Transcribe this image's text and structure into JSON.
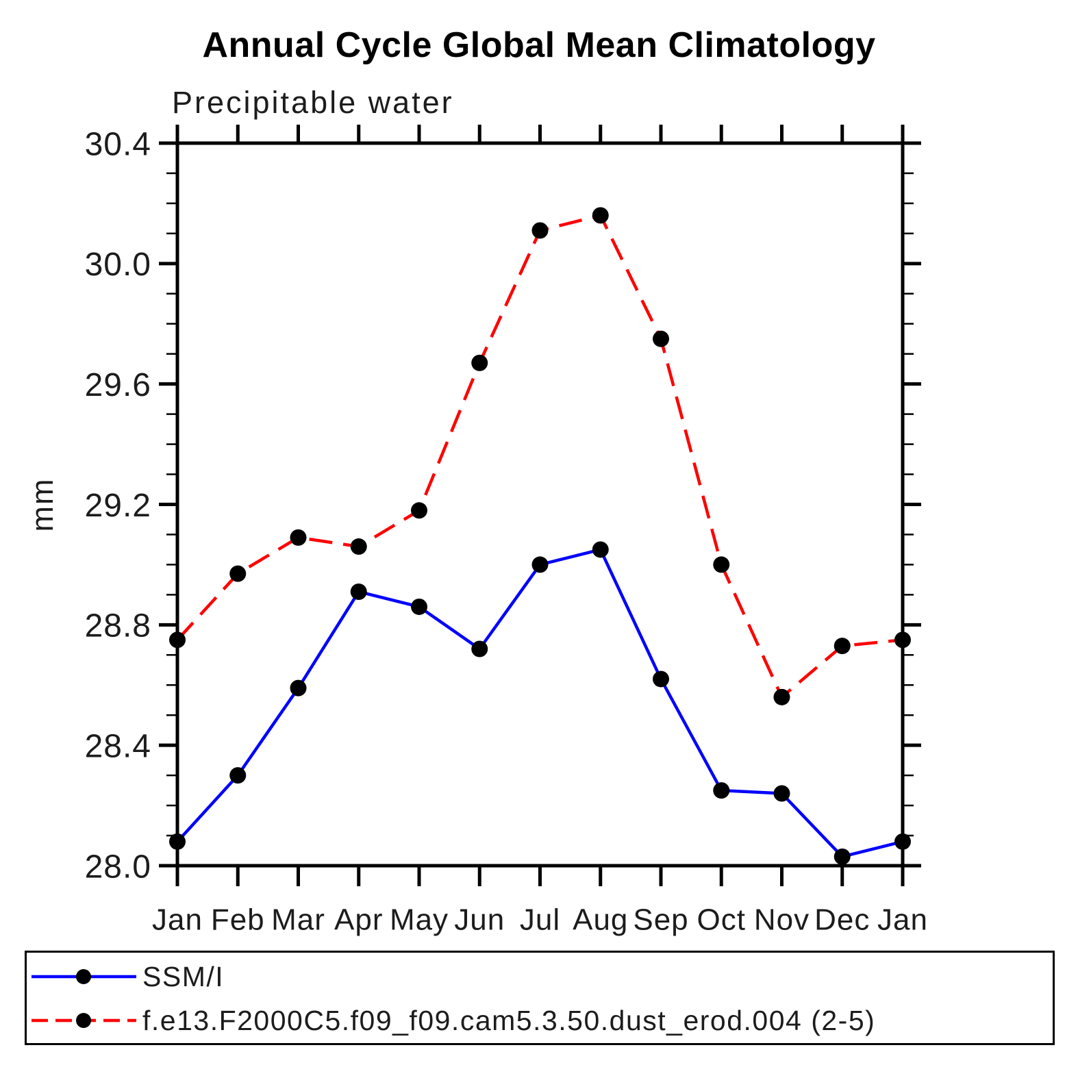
{
  "title": "Annual Cycle Global Mean Climatology",
  "subtitle": "Precipitable water",
  "ylabel": "mm",
  "colors": {
    "axis": "#000000",
    "marker": "#000000",
    "obs_line": "#0000ff",
    "model_line": "#ff0000",
    "background": "#ffffff"
  },
  "chart_data": {
    "type": "line",
    "categories": [
      "Jan",
      "Feb",
      "Mar",
      "Apr",
      "May",
      "Jun",
      "Jul",
      "Aug",
      "Sep",
      "Oct",
      "Nov",
      "Dec",
      "Jan"
    ],
    "series": [
      {
        "name": "SSM/I",
        "style": "solid",
        "color": "#0000ff",
        "marker": "filled-circle",
        "values": [
          28.08,
          28.3,
          28.59,
          28.91,
          28.86,
          28.72,
          29.0,
          29.05,
          28.62,
          28.25,
          28.24,
          28.03,
          28.08
        ]
      },
      {
        "name": "f.e13.F2000C5.f09_f09.cam5.3.50.dust_erod.004 (2-5)",
        "style": "dashed",
        "color": "#ff0000",
        "marker": "filled-circle",
        "values": [
          28.75,
          28.97,
          29.09,
          29.06,
          29.18,
          29.67,
          30.11,
          30.16,
          29.75,
          29.0,
          28.56,
          28.73,
          28.75
        ]
      }
    ],
    "title": "Annual Cycle Global Mean Climatology",
    "subtitle": "Precipitable water",
    "xlabel": "",
    "ylabel": "mm",
    "ylim": [
      28.0,
      30.4
    ],
    "y_tick_labels": [
      "28.0",
      "28.4",
      "28.8",
      "29.2",
      "29.6",
      "30.0",
      "30.4"
    ],
    "y_major_step": 0.4,
    "y_minor_step": 0.1,
    "grid": false,
    "legend_position": "bottom-box"
  },
  "legend": {
    "items": [
      {
        "label": "SSM/I"
      },
      {
        "label": "f.e13.F2000C5.f09_f09.cam5.3.50.dust_erod.004 (2-5)"
      }
    ]
  }
}
